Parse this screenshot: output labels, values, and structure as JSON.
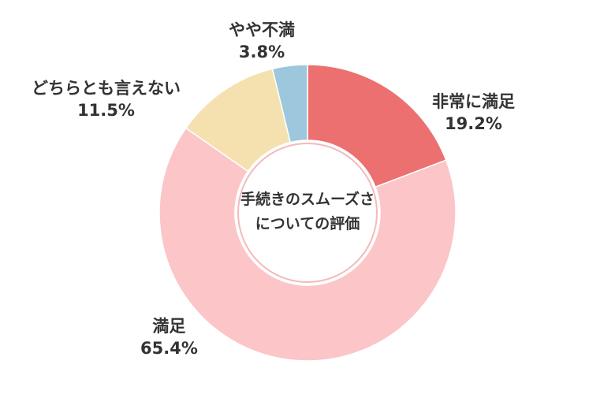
{
  "chart_data": {
    "type": "pie",
    "title": "",
    "center_text": [
      "手続きのスムーズさ",
      "についての評価"
    ],
    "slices": [
      {
        "label": "非常に満足",
        "value": 19.2,
        "value_text": "19.2%",
        "color": "#ec7070"
      },
      {
        "label": "満足",
        "value": 65.4,
        "value_text": "65.4%",
        "color": "#fcc5c7"
      },
      {
        "label": "どちらとも言えない",
        "value": 11.5,
        "value_text": "11.5%",
        "color": "#f5e1b0"
      },
      {
        "label": "やや不満",
        "value": 3.8,
        "value_text": "3.8%",
        "color": "#9cc7dc"
      }
    ],
    "start": "top",
    "direction": "clockwise",
    "legend": "none"
  }
}
